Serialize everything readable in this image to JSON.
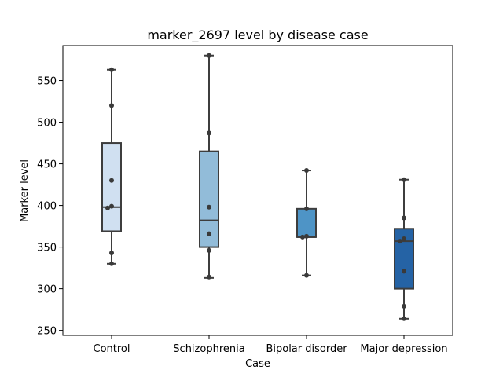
{
  "chart_data": {
    "type": "box",
    "title": "marker_2697 level by disease case",
    "xlabel": "Case",
    "ylabel": "Marker level",
    "ylim": [
      244,
      592
    ],
    "yticks": [
      250,
      300,
      350,
      400,
      450,
      500,
      550
    ],
    "grid": false,
    "legend": "none",
    "categories": [
      "Control",
      "Schizophrenia",
      "Bipolar disorder",
      "Major depression"
    ],
    "box_colors": [
      "#d0e0f1",
      "#92bcd9",
      "#4e94c6",
      "#2563a5"
    ],
    "boxes": [
      {
        "category": "Control",
        "whisker_low": 330,
        "q1": 369,
        "median": 398,
        "q3": 475,
        "whisker_high": 563
      },
      {
        "category": "Schizophrenia",
        "whisker_low": 313,
        "q1": 350,
        "median": 382,
        "q3": 465,
        "whisker_high": 580
      },
      {
        "category": "Bipolar disorder",
        "whisker_low": 316,
        "q1": 362,
        "median": 362,
        "q3": 396,
        "whisker_high": 442
      },
      {
        "category": "Major depression",
        "whisker_low": 264,
        "q1": 300,
        "median": 357,
        "q3": 372,
        "whisker_high": 431
      }
    ],
    "points": [
      {
        "category": "Control",
        "values": [
          563,
          520,
          430,
          399,
          397,
          343,
          330
        ]
      },
      {
        "category": "Schizophrenia",
        "values": [
          580,
          487,
          398,
          366,
          346,
          314
        ]
      },
      {
        "category": "Bipolar disorder",
        "values": [
          442,
          396,
          363,
          362,
          316
        ]
      },
      {
        "category": "Major depression",
        "values": [
          431,
          385,
          360,
          357,
          321,
          279,
          264
        ]
      }
    ]
  }
}
